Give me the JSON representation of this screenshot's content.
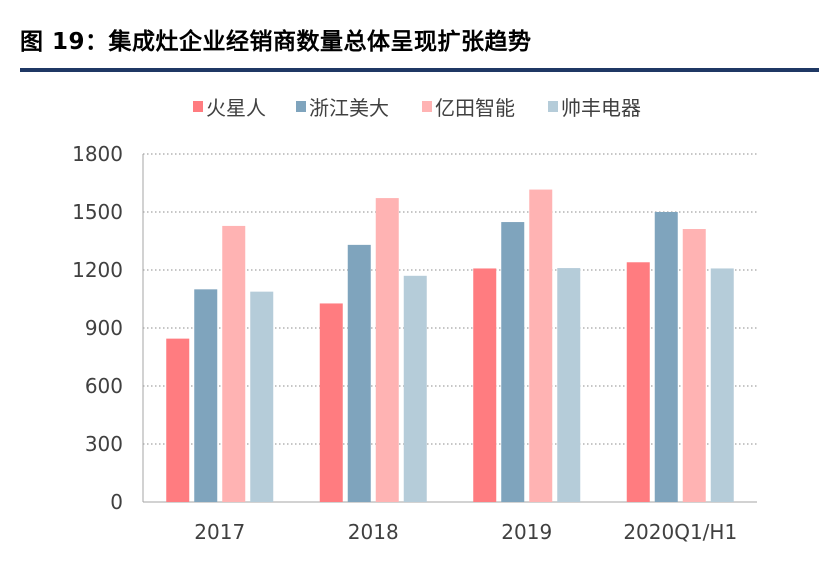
{
  "figure": {
    "title": "图 19：集成灶企业经销商数量总体呈现扩张趋势"
  },
  "chart_data": {
    "type": "bar",
    "title": "",
    "xlabel": "",
    "ylabel": "",
    "categories": [
      "2017",
      "2018",
      "2019",
      "2020Q1/H1"
    ],
    "ylim": [
      0,
      1800
    ],
    "yticks": [
      0,
      300,
      600,
      900,
      1200,
      1500,
      1800
    ],
    "grid": "horizontal dotted",
    "legend_position": "top",
    "series": [
      {
        "name": "火星人",
        "color": "#ff7c80",
        "values": [
          845,
          1027,
          1208,
          1240
        ]
      },
      {
        "name": "浙江美大",
        "color": "#7fa4bd",
        "values": [
          1100,
          1330,
          1448,
          1500
        ]
      },
      {
        "name": "亿田智能",
        "color": "#ffb3b3",
        "values": [
          1428,
          1572,
          1616,
          1412
        ]
      },
      {
        "name": "帅丰电器",
        "color": "#b5ccd9",
        "values": [
          1088,
          1170,
          1210,
          1208
        ]
      }
    ]
  }
}
